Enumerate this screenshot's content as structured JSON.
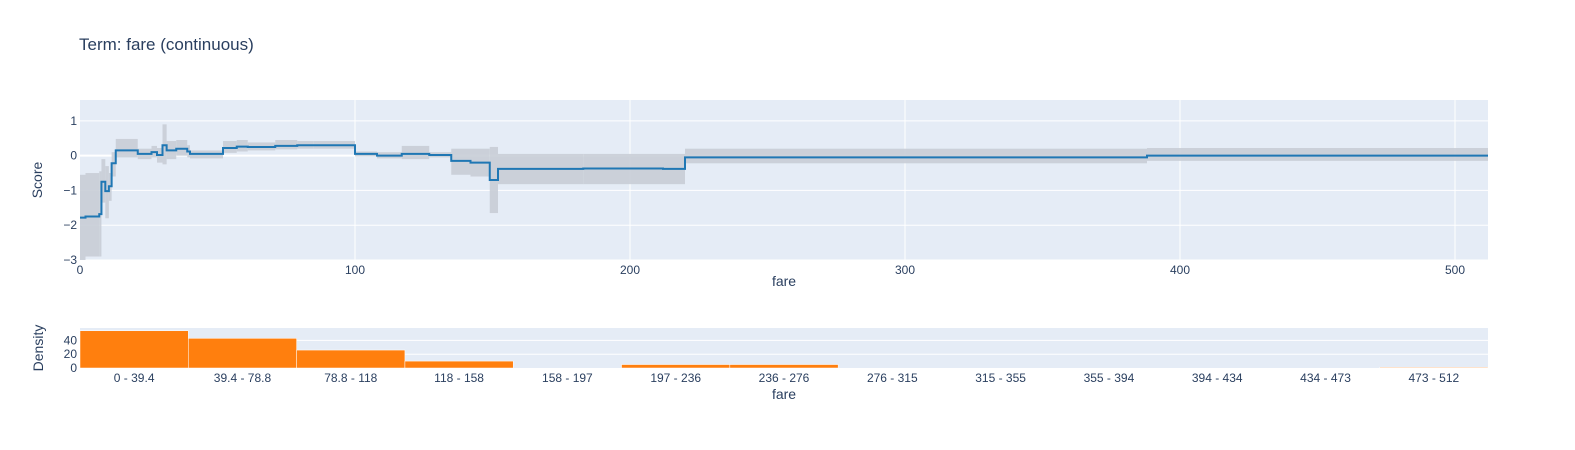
{
  "chart_data": [
    {
      "type": "line",
      "title": "Term: fare (continuous)",
      "xlabel": "fare",
      "ylabel": "Score",
      "xlim": [
        0,
        512
      ],
      "ylim": [
        -3,
        1.6
      ],
      "grid": true,
      "xticks": [
        0,
        100,
        200,
        300,
        400,
        500
      ],
      "yticks": [
        -3,
        -2,
        -1,
        0,
        1
      ],
      "line_color": "#1f77b4",
      "band_color": "#c8cdd6",
      "step": [
        {
          "x": 0,
          "y": -1.78
        },
        {
          "x": 2,
          "y": -1.75
        },
        {
          "x": 7,
          "y": -1.68
        },
        {
          "x": 7.8,
          "y": -0.75
        },
        {
          "x": 9.2,
          "y": -1.02
        },
        {
          "x": 10.5,
          "y": -0.88
        },
        {
          "x": 11.5,
          "y": -0.22
        },
        {
          "x": 13,
          "y": 0.15
        },
        {
          "x": 21,
          "y": 0.05
        },
        {
          "x": 26,
          "y": 0.1
        },
        {
          "x": 28,
          "y": 0.02
        },
        {
          "x": 30,
          "y": 0.3
        },
        {
          "x": 31.5,
          "y": 0.15
        },
        {
          "x": 35,
          "y": 0.2
        },
        {
          "x": 39,
          "y": 0.12
        },
        {
          "x": 40,
          "y": 0.05
        },
        {
          "x": 52,
          "y": 0.22
        },
        {
          "x": 57,
          "y": 0.26
        },
        {
          "x": 61,
          "y": 0.25
        },
        {
          "x": 71,
          "y": 0.28
        },
        {
          "x": 79,
          "y": 0.3
        },
        {
          "x": 85,
          "y": 0.3
        },
        {
          "x": 100,
          "y": 0.05
        },
        {
          "x": 108,
          "y": 0.0
        },
        {
          "x": 117,
          "y": 0.05
        },
        {
          "x": 127,
          "y": 0.02
        },
        {
          "x": 135,
          "y": -0.15
        },
        {
          "x": 142,
          "y": -0.2
        },
        {
          "x": 149,
          "y": -0.7
        },
        {
          "x": 152,
          "y": -0.38
        },
        {
          "x": 183,
          "y": -0.37
        },
        {
          "x": 212,
          "y": -0.38
        },
        {
          "x": 220,
          "y": -0.05
        },
        {
          "x": 388,
          "y": 0.0
        },
        {
          "x": 512,
          "y": 0.0
        }
      ],
      "band": [
        {
          "x0": 0,
          "x1": 2,
          "lo": -3.0,
          "hi": -0.55
        },
        {
          "x0": 2,
          "x1": 7,
          "lo": -2.9,
          "hi": -0.5
        },
        {
          "x0": 7,
          "x1": 7.8,
          "lo": -2.9,
          "hi": -0.45
        },
        {
          "x0": 7.8,
          "x1": 9.2,
          "lo": -1.35,
          "hi": -0.1
        },
        {
          "x0": 9.2,
          "x1": 10.5,
          "lo": -1.8,
          "hi": -0.3
        },
        {
          "x0": 10.5,
          "x1": 11.5,
          "lo": -1.3,
          "hi": -0.5
        },
        {
          "x0": 11.5,
          "x1": 13,
          "lo": -0.6,
          "hi": 0.1
        },
        {
          "x0": 13,
          "x1": 21,
          "lo": -0.05,
          "hi": 0.48
        },
        {
          "x0": 21,
          "x1": 26,
          "lo": -0.1,
          "hi": 0.2
        },
        {
          "x0": 26,
          "x1": 28,
          "lo": -0.05,
          "hi": 0.28
        },
        {
          "x0": 28,
          "x1": 30,
          "lo": -0.2,
          "hi": 0.22
        },
        {
          "x0": 30,
          "x1": 31.5,
          "lo": -0.25,
          "hi": 0.9
        },
        {
          "x0": 31.5,
          "x1": 35,
          "lo": -0.1,
          "hi": 0.42
        },
        {
          "x0": 35,
          "x1": 39,
          "lo": 0.0,
          "hi": 0.45
        },
        {
          "x0": 39,
          "x1": 40,
          "lo": -0.05,
          "hi": 0.3
        },
        {
          "x0": 40,
          "x1": 52,
          "lo": -0.08,
          "hi": 0.15
        },
        {
          "x0": 52,
          "x1": 57,
          "lo": 0.08,
          "hi": 0.42
        },
        {
          "x0": 57,
          "x1": 61,
          "lo": 0.12,
          "hi": 0.45
        },
        {
          "x0": 61,
          "x1": 71,
          "lo": 0.15,
          "hi": 0.38
        },
        {
          "x0": 71,
          "x1": 79,
          "lo": 0.18,
          "hi": 0.45
        },
        {
          "x0": 79,
          "x1": 85,
          "lo": 0.2,
          "hi": 0.42
        },
        {
          "x0": 85,
          "x1": 100,
          "lo": 0.2,
          "hi": 0.42
        },
        {
          "x0": 100,
          "x1": 108,
          "lo": -0.02,
          "hi": 0.12
        },
        {
          "x0": 108,
          "x1": 117,
          "lo": -0.08,
          "hi": 0.1
        },
        {
          "x0": 117,
          "x1": 127,
          "lo": -0.1,
          "hi": 0.28
        },
        {
          "x0": 127,
          "x1": 135,
          "lo": -0.05,
          "hi": 0.1
        },
        {
          "x0": 135,
          "x1": 142,
          "lo": -0.55,
          "hi": 0.2
        },
        {
          "x0": 142,
          "x1": 149,
          "lo": -0.6,
          "hi": 0.2
        },
        {
          "x0": 149,
          "x1": 152,
          "lo": -1.65,
          "hi": 0.25
        },
        {
          "x0": 152,
          "x1": 183,
          "lo": -0.82,
          "hi": 0.05
        },
        {
          "x0": 183,
          "x1": 212,
          "lo": -0.82,
          "hi": 0.05
        },
        {
          "x0": 212,
          "x1": 220,
          "lo": -0.82,
          "hi": 0.05
        },
        {
          "x0": 220,
          "x1": 388,
          "lo": -0.22,
          "hi": 0.2
        },
        {
          "x0": 388,
          "x1": 512,
          "lo": -0.15,
          "hi": 0.22
        }
      ]
    },
    {
      "type": "bar",
      "xlabel": "fare",
      "ylabel": "Density",
      "ylim": [
        0,
        58
      ],
      "yticks": [
        0,
        20,
        40
      ],
      "bar_color": "#ff7f0e",
      "categories": [
        "0 - 39.4",
        "39.4 - 78.8",
        "78.8 - 118",
        "118 - 158",
        "158 - 197",
        "197 - 236",
        "236 - 276",
        "276 - 315",
        "315 - 355",
        "355 - 394",
        "394 - 434",
        "434 - 473",
        "473 - 512"
      ],
      "values": [
        54,
        43,
        26,
        10,
        0,
        5,
        5,
        0,
        0,
        0,
        0,
        0,
        1
      ]
    }
  ]
}
